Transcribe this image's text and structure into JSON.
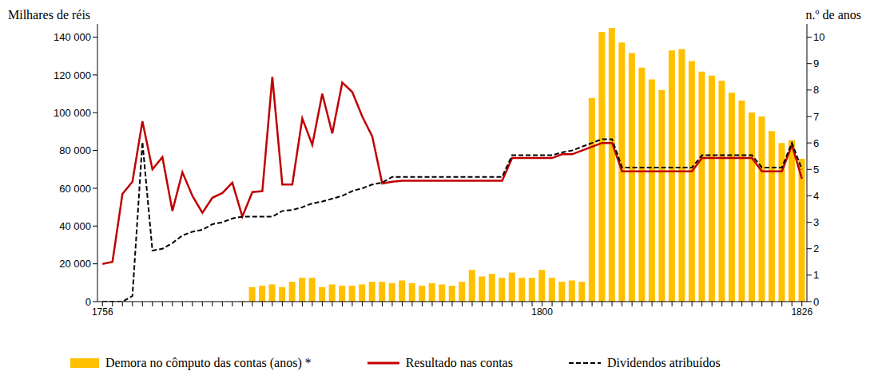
{
  "chart_data": {
    "type": "combo",
    "y_label": "Milhares  de réis",
    "y2_label": "n.º de anos",
    "categories": [
      "1756",
      null,
      null,
      null,
      null,
      null,
      null,
      null,
      null,
      null,
      null,
      null,
      null,
      null,
      null,
      null,
      null,
      null,
      null,
      null,
      null,
      null,
      null,
      null,
      null,
      null,
      null,
      null,
      null,
      null,
      null,
      null,
      null,
      null,
      null,
      null,
      null,
      null,
      null,
      null,
      null,
      null,
      null,
      null,
      "1800",
      null,
      null,
      null,
      null,
      null,
      null,
      null,
      null,
      null,
      null,
      null,
      null,
      null,
      null,
      null,
      null,
      null,
      null,
      null,
      null,
      null,
      null,
      null,
      null,
      null,
      "1826"
    ],
    "ylim": [
      0,
      147000
    ],
    "yticks": [
      0,
      {
        "value": 20000,
        "label": "20 000"
      },
      {
        "value": 40000,
        "label": "40 000"
      },
      {
        "value": 60000,
        "label": "60 000"
      },
      {
        "value": 80000,
        "label": "80 000"
      },
      {
        "value": 100000,
        "label": "100 000"
      },
      {
        "value": 120000,
        "label": "120 000"
      },
      {
        "value": 140000,
        "label": "140 000"
      }
    ],
    "y2lim": [
      0,
      10.5
    ],
    "y2ticks": [
      0,
      1,
      2,
      3,
      4,
      5,
      6,
      7,
      8,
      9,
      10
    ],
    "grid": false,
    "legend": "bottom",
    "series": [
      {
        "name": "Demora no cômputo das contas (anos) *",
        "type": "bar",
        "axis": "y2",
        "color": "#FFC000",
        "values": [
          null,
          null,
          null,
          null,
          null,
          null,
          null,
          null,
          null,
          null,
          null,
          null,
          null,
          null,
          0.02,
          0.55,
          0.6,
          0.65,
          0.55,
          0.75,
          0.9,
          0.9,
          0.55,
          0.65,
          0.6,
          0.6,
          0.65,
          0.75,
          0.75,
          0.7,
          0.8,
          0.7,
          0.6,
          0.7,
          0.65,
          0.6,
          0.75,
          1.2,
          0.95,
          1.05,
          0.9,
          1.1,
          0.9,
          0.9,
          1.2,
          0.9,
          0.75,
          0.8,
          0.75,
          7.7,
          10.2,
          10.35,
          9.8,
          9.4,
          8.85,
          8.4,
          8.0,
          9.5,
          9.55,
          9.1,
          8.7,
          8.55,
          8.35,
          7.9,
          7.6,
          7.15,
          7.0,
          6.45,
          6.0,
          6.1,
          5.4
        ]
      },
      {
        "name": "Resultado nas contas",
        "type": "line",
        "color": "#C00000",
        "line_style": "solid",
        "values": [
          20000,
          21000,
          57000,
          63500,
          95500,
          70000,
          76500,
          48000,
          68500,
          56000,
          47000,
          55000,
          57500,
          63000,
          45000,
          58000,
          58500,
          119000,
          62000,
          62000,
          97000,
          83000,
          110000,
          89000,
          116000,
          111000,
          98000,
          87500,
          62500,
          63500,
          64000,
          64000,
          64000,
          64000,
          64000,
          64000,
          64000,
          64000,
          64000,
          64000,
          64000,
          76000,
          76000,
          76000,
          76000,
          76000,
          78000,
          78000,
          80000,
          82000,
          84000,
          84000,
          69000,
          69000,
          69000,
          69000,
          69000,
          69000,
          69000,
          69000,
          76000,
          76000,
          76000,
          76000,
          76000,
          76000,
          69000,
          69000,
          69000,
          83000,
          65000
        ]
      },
      {
        "name": "Dividendos atribuídos",
        "type": "line",
        "color": "#000000",
        "line_style": "dashed",
        "values": [
          0,
          0,
          0,
          3000,
          84500,
          27000,
          28000,
          31000,
          35000,
          37000,
          38000,
          41000,
          42000,
          44000,
          45000,
          45000,
          45000,
          45000,
          48000,
          48500,
          50000,
          52000,
          53000,
          54500,
          56000,
          58500,
          60000,
          62000,
          63000,
          66000,
          66000,
          66000,
          66000,
          66000,
          66000,
          66000,
          66000,
          66000,
          66000,
          66000,
          66000,
          77500,
          77500,
          77500,
          77500,
          77500,
          79000,
          80000,
          82000,
          84000,
          86000,
          86000,
          71000,
          71000,
          71000,
          71000,
          71000,
          71000,
          71000,
          71000,
          77500,
          77500,
          77500,
          77500,
          77500,
          77500,
          71000,
          71000,
          71000,
          84000,
          70000
        ]
      }
    ]
  }
}
